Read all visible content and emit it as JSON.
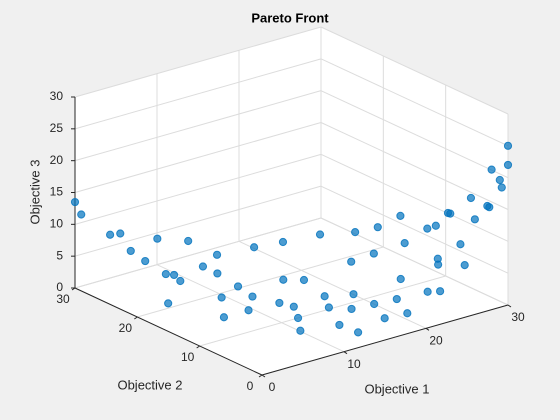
{
  "chart_data": {
    "type": "scatter3",
    "title": "Pareto Front",
    "xlabel": "Objective 1",
    "ylabel": "Objective 2",
    "zlabel": "Objective 3",
    "color": "#0072bd",
    "grid": true,
    "xlim": [
      0,
      30
    ],
    "ylim": [
      0,
      30
    ],
    "zlim": [
      0,
      30
    ],
    "xticks": [
      0,
      10,
      20,
      30
    ],
    "yticks": [
      0,
      10,
      20,
      30
    ],
    "zticks": [
      0,
      5,
      10,
      15,
      20,
      25,
      30
    ],
    "x": [
      0,
      0,
      2,
      3,
      4,
      5,
      6,
      6,
      8,
      9,
      8,
      10,
      11,
      12,
      13,
      14,
      15,
      16,
      12,
      15,
      17,
      18,
      19,
      14,
      20,
      22,
      21,
      23,
      24,
      22,
      24,
      25,
      26,
      27,
      26,
      28,
      27,
      24,
      20,
      18,
      29,
      30,
      28,
      29,
      30,
      29,
      30,
      30,
      28,
      27,
      26,
      25,
      23,
      20,
      17,
      15,
      12,
      10,
      7,
      4,
      14,
      10,
      6,
      3,
      9
    ],
    "y": [
      30,
      29,
      27,
      25,
      24,
      22,
      21,
      22,
      20,
      19,
      17,
      17,
      16,
      13,
      12,
      15,
      13,
      11,
      10,
      9,
      8,
      9,
      7,
      6,
      12,
      11,
      6,
      8,
      5,
      14,
      13,
      10,
      12,
      9,
      6,
      5,
      3,
      3,
      3,
      4,
      4,
      3,
      7,
      2,
      1,
      0,
      0,
      0,
      0,
      2,
      4,
      5,
      2,
      17,
      19,
      21,
      23,
      25,
      26,
      28,
      3,
      7,
      14,
      19,
      14
    ],
    "z": [
      13.5,
      12,
      9,
      7,
      5.5,
      4,
      3,
      3.5,
      5,
      4,
      1.5,
      2.5,
      1,
      1,
      0.5,
      3,
      3.5,
      1.5,
      0,
      1,
      0.5,
      2,
      1,
      0,
      5,
      6,
      1.5,
      3,
      2,
      8,
      8.5,
      7,
      10,
      9,
      6,
      8,
      6,
      3,
      1,
      0.5,
      12,
      14,
      12,
      15,
      18,
      20,
      22,
      25,
      22,
      17,
      14,
      12,
      8,
      7,
      6,
      5,
      4,
      6,
      7,
      8,
      0.2,
      0.1,
      0.5,
      1.5,
      0.5
    ]
  }
}
